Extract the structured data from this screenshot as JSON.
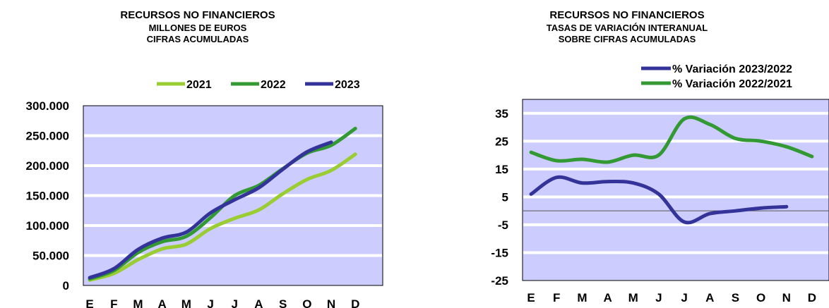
{
  "chart_data": [
    {
      "type": "line",
      "title": "RECURSOS NO FINANCIEROS",
      "subtitle_lines": [
        "MILLONES DE EUROS",
        "CIFRAS ACUMULADAS"
      ],
      "categories": [
        "E",
        "F",
        "M",
        "A",
        "M",
        "J",
        "J",
        "A",
        "S",
        "O",
        "N",
        "D"
      ],
      "ylim": [
        0,
        300000
      ],
      "yticks": [
        "0",
        "50.000",
        "100.000",
        "150.000",
        "200.000",
        "250.000",
        "300.000"
      ],
      "grid": true,
      "legend_position": "top",
      "series": [
        {
          "name": "2021",
          "color": "#9acd32",
          "values": [
            9000,
            20000,
            43000,
            61000,
            69000,
            95000,
            112000,
            126000,
            153000,
            177000,
            192000,
            219000
          ]
        },
        {
          "name": "2022",
          "color": "#339933",
          "values": [
            11000,
            25000,
            55000,
            73000,
            82000,
            113000,
            150000,
            167000,
            195000,
            221000,
            234000,
            262000
          ]
        },
        {
          "name": "2023",
          "color": "#333399",
          "values": [
            13000,
            28000,
            60000,
            79000,
            89000,
            121000,
            143000,
            163000,
            194000,
            223000,
            239000,
            null
          ]
        }
      ]
    },
    {
      "type": "line",
      "title": "RECURSOS NO FINANCIEROS",
      "subtitle_lines": [
        "TASAS DE VARIACIÓN INTERANUAL",
        "SOBRE CIFRAS ACUMULADAS"
      ],
      "categories": [
        "E",
        "F",
        "M",
        "A",
        "M",
        "J",
        "J",
        "A",
        "S",
        "O",
        "N",
        "D"
      ],
      "ylim": [
        -25,
        40
      ],
      "yticks": [
        "-25",
        "-15",
        "-5",
        "5",
        "15",
        "25",
        "35"
      ],
      "grid": true,
      "reference_line": 0,
      "legend_position": "top-right",
      "series": [
        {
          "name": "% Variación 2023/2022",
          "color": "#333399",
          "values": [
            6,
            12,
            10,
            10.5,
            10,
            6,
            -4,
            -1,
            0,
            1,
            1.5,
            null
          ]
        },
        {
          "name": "% Variación 2022/2021",
          "color": "#339933",
          "values": [
            21,
            18,
            18.5,
            17.5,
            20,
            20,
            33,
            31,
            26,
            25,
            23,
            19.5
          ]
        }
      ]
    }
  ]
}
